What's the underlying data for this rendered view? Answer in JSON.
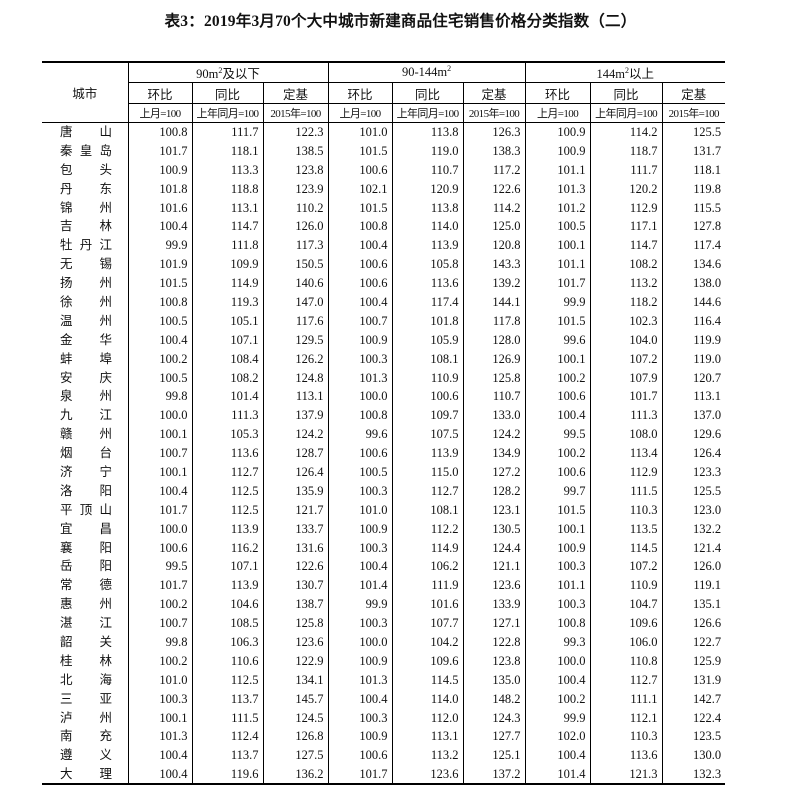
{
  "title": "表3：2019年3月70个大中城市新建商品住宅销售价格分类指数（二）",
  "header": {
    "city_label": "城市",
    "groups": [
      {
        "pre": "90m",
        "sup": "2",
        "post": "及以下"
      },
      {
        "pre": "90-144m",
        "sup": "2",
        "post": ""
      },
      {
        "pre": "144m",
        "sup": "2",
        "post": "以上"
      }
    ],
    "metrics": [
      "环比",
      "同比",
      "定基"
    ],
    "bases": [
      "上月=100",
      "上年同月=100",
      "2015年=100"
    ]
  },
  "rows": [
    {
      "city": "唐山",
      "v": [
        "100.8",
        "111.7",
        "122.3",
        "101.0",
        "113.8",
        "126.3",
        "100.9",
        "114.2",
        "125.5"
      ]
    },
    {
      "city": "秦皇岛",
      "v": [
        "101.7",
        "118.1",
        "138.5",
        "101.5",
        "119.0",
        "138.3",
        "100.9",
        "118.7",
        "131.7"
      ]
    },
    {
      "city": "包头",
      "v": [
        "100.9",
        "113.3",
        "123.8",
        "100.6",
        "110.7",
        "117.2",
        "101.1",
        "111.7",
        "118.1"
      ]
    },
    {
      "city": "丹东",
      "v": [
        "101.8",
        "118.8",
        "123.9",
        "102.1",
        "120.9",
        "122.6",
        "101.3",
        "120.2",
        "119.8"
      ]
    },
    {
      "city": "锦州",
      "v": [
        "101.6",
        "113.1",
        "110.2",
        "101.5",
        "113.8",
        "114.2",
        "101.2",
        "112.9",
        "115.5"
      ]
    },
    {
      "city": "吉林",
      "v": [
        "100.4",
        "114.7",
        "126.0",
        "100.8",
        "114.0",
        "125.0",
        "100.5",
        "117.1",
        "127.8"
      ]
    },
    {
      "city": "牡丹江",
      "v": [
        "99.9",
        "111.8",
        "117.3",
        "100.4",
        "113.9",
        "120.8",
        "100.1",
        "114.7",
        "117.4"
      ]
    },
    {
      "city": "无锡",
      "v": [
        "101.9",
        "109.9",
        "150.5",
        "100.6",
        "105.8",
        "143.3",
        "101.1",
        "108.2",
        "134.6"
      ]
    },
    {
      "city": "扬州",
      "v": [
        "101.5",
        "114.9",
        "140.6",
        "100.6",
        "113.6",
        "139.2",
        "101.7",
        "113.2",
        "138.0"
      ]
    },
    {
      "city": "徐州",
      "v": [
        "100.8",
        "119.3",
        "147.0",
        "100.4",
        "117.4",
        "144.1",
        "99.9",
        "118.2",
        "144.6"
      ]
    },
    {
      "city": "温州",
      "v": [
        "100.5",
        "105.1",
        "117.6",
        "100.7",
        "101.8",
        "117.8",
        "101.5",
        "102.3",
        "116.4"
      ]
    },
    {
      "city": "金华",
      "v": [
        "100.4",
        "107.1",
        "129.5",
        "100.9",
        "105.9",
        "128.0",
        "99.6",
        "104.0",
        "119.9"
      ]
    },
    {
      "city": "蚌埠",
      "v": [
        "100.2",
        "108.4",
        "126.2",
        "100.3",
        "108.1",
        "126.9",
        "100.1",
        "107.2",
        "119.0"
      ]
    },
    {
      "city": "安庆",
      "v": [
        "100.5",
        "108.2",
        "124.8",
        "101.3",
        "110.9",
        "125.8",
        "100.2",
        "107.9",
        "120.7"
      ]
    },
    {
      "city": "泉州",
      "v": [
        "99.8",
        "101.4",
        "113.1",
        "100.0",
        "100.6",
        "110.7",
        "100.6",
        "101.7",
        "113.1"
      ]
    },
    {
      "city": "九江",
      "v": [
        "100.0",
        "111.3",
        "137.9",
        "100.8",
        "109.7",
        "133.0",
        "100.4",
        "111.3",
        "137.0"
      ]
    },
    {
      "city": "赣州",
      "v": [
        "100.1",
        "105.3",
        "124.2",
        "99.6",
        "107.5",
        "124.2",
        "99.5",
        "108.0",
        "129.6"
      ]
    },
    {
      "city": "烟台",
      "v": [
        "100.7",
        "113.6",
        "128.7",
        "100.6",
        "113.9",
        "134.9",
        "100.2",
        "113.4",
        "126.4"
      ]
    },
    {
      "city": "济宁",
      "v": [
        "100.1",
        "112.7",
        "126.4",
        "100.5",
        "115.0",
        "127.2",
        "100.6",
        "112.9",
        "123.3"
      ]
    },
    {
      "city": "洛阳",
      "v": [
        "100.4",
        "112.5",
        "135.9",
        "100.3",
        "112.7",
        "128.2",
        "99.7",
        "111.5",
        "125.5"
      ]
    },
    {
      "city": "平顶山",
      "v": [
        "101.7",
        "112.5",
        "121.7",
        "101.0",
        "108.1",
        "123.1",
        "101.5",
        "110.3",
        "123.0"
      ]
    },
    {
      "city": "宜昌",
      "v": [
        "100.0",
        "113.9",
        "133.7",
        "100.9",
        "112.2",
        "130.5",
        "100.1",
        "113.5",
        "132.2"
      ]
    },
    {
      "city": "襄阳",
      "v": [
        "100.6",
        "116.2",
        "131.6",
        "100.3",
        "114.9",
        "124.4",
        "100.9",
        "114.5",
        "121.4"
      ]
    },
    {
      "city": "岳阳",
      "v": [
        "99.5",
        "107.1",
        "122.6",
        "100.4",
        "106.2",
        "121.1",
        "100.3",
        "107.2",
        "126.0"
      ]
    },
    {
      "city": "常德",
      "v": [
        "101.7",
        "113.9",
        "130.7",
        "101.4",
        "111.9",
        "123.6",
        "101.1",
        "110.9",
        "119.1"
      ]
    },
    {
      "city": "惠州",
      "v": [
        "100.2",
        "104.6",
        "138.7",
        "99.9",
        "101.6",
        "133.9",
        "100.3",
        "104.7",
        "135.1"
      ]
    },
    {
      "city": "湛江",
      "v": [
        "100.7",
        "108.5",
        "125.8",
        "100.3",
        "107.7",
        "127.1",
        "100.8",
        "109.6",
        "126.6"
      ]
    },
    {
      "city": "韶关",
      "v": [
        "99.8",
        "106.3",
        "123.6",
        "100.0",
        "104.2",
        "122.8",
        "99.3",
        "106.0",
        "122.7"
      ]
    },
    {
      "city": "桂林",
      "v": [
        "100.2",
        "110.6",
        "122.9",
        "100.9",
        "109.6",
        "123.8",
        "100.0",
        "110.8",
        "125.9"
      ]
    },
    {
      "city": "北海",
      "v": [
        "101.0",
        "112.5",
        "134.1",
        "101.3",
        "114.5",
        "135.0",
        "100.4",
        "112.7",
        "131.9"
      ]
    },
    {
      "city": "三亚",
      "v": [
        "100.3",
        "113.7",
        "145.7",
        "100.4",
        "114.0",
        "148.2",
        "100.2",
        "111.1",
        "142.7"
      ]
    },
    {
      "city": "泸州",
      "v": [
        "100.1",
        "111.5",
        "124.5",
        "100.3",
        "112.0",
        "124.3",
        "99.9",
        "112.1",
        "122.4"
      ]
    },
    {
      "city": "南充",
      "v": [
        "101.3",
        "112.4",
        "126.8",
        "100.9",
        "113.1",
        "127.7",
        "102.0",
        "110.3",
        "123.5"
      ]
    },
    {
      "city": "遵义",
      "v": [
        "100.4",
        "113.7",
        "127.5",
        "100.6",
        "113.2",
        "125.1",
        "100.4",
        "113.6",
        "130.0"
      ]
    },
    {
      "city": "大理",
      "v": [
        "100.4",
        "119.6",
        "136.2",
        "101.7",
        "123.6",
        "137.2",
        "101.4",
        "121.3",
        "132.3"
      ]
    }
  ]
}
